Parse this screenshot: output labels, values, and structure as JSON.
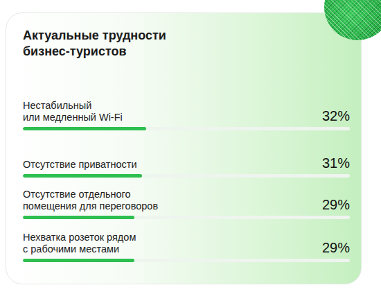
{
  "chart_data": {
    "type": "bar",
    "orientation": "horizontal",
    "title": "Актуальные трудности бизнес-туристов",
    "categories": [
      "Нестабильный\nили медленный Wi-Fi",
      "Отсутствие приватности",
      "Отсутствие отдельного\nпомещения для переговоров",
      "Нехватка розеток рядом\nс рабочими местами"
    ],
    "values": [
      32,
      31,
      29,
      29
    ],
    "value_labels": [
      "32%",
      "31%",
      "29%",
      "29%"
    ],
    "data_labels": true,
    "color": "#2dbf4f",
    "xlim": [
      0,
      85
    ],
    "tick_labels": false,
    "grid": false
  }
}
